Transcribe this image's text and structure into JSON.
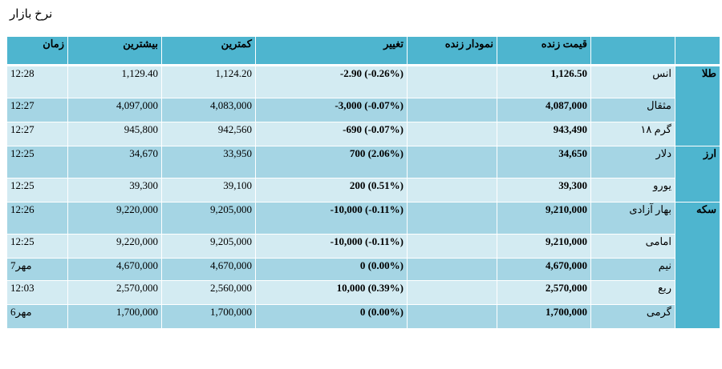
{
  "page": {
    "title": "نرخ بازار"
  },
  "table": {
    "headers": {
      "time": "زمان",
      "high": "بیشترین",
      "low": "کمترین",
      "change": "تغییر",
      "live_chart": "نمودار زنده",
      "live_price": "قیمت زنده",
      "item": "",
      "group": ""
    },
    "groups": [
      {
        "name": "طلا",
        "rows": [
          {
            "item": "انس",
            "live_price": "1,126.50",
            "live_chart": "",
            "change": "-2.90 (-0.26%)",
            "low": "1,124.20",
            "high": "1,129.40",
            "time": "12:28"
          },
          {
            "item": "مثقال",
            "live_price": "4,087,000",
            "live_chart": "",
            "change": "-3,000 (-0.07%)",
            "low": "4,083,000",
            "high": "4,097,000",
            "time": "12:27"
          },
          {
            "item": "گرم ۱۸",
            "live_price": "943,490",
            "live_chart": "",
            "change": "-690 (-0.07%)",
            "low": "942,560",
            "high": "945,800",
            "time": "12:27"
          }
        ]
      },
      {
        "name": "ارز",
        "rows": [
          {
            "item": "دلار",
            "live_price": "34,650",
            "live_chart": "",
            "change": "700 (2.06%)",
            "low": "33,950",
            "high": "34,670",
            "time": "12:25"
          },
          {
            "item": "یورو",
            "live_price": "39,300",
            "live_chart": "",
            "change": "200 (0.51%)",
            "low": "39,100",
            "high": "39,300",
            "time": "12:25"
          }
        ]
      },
      {
        "name": "سکه",
        "rows": [
          {
            "item": "بهار آزادی",
            "live_price": "9,210,000",
            "live_chart": "",
            "change": "-10,000 (-0.11%)",
            "low": "9,205,000",
            "high": "9,220,000",
            "time": "12:26"
          },
          {
            "item": "امامی",
            "live_price": "9,210,000",
            "live_chart": "",
            "change": "-10,000 (-0.11%)",
            "low": "9,205,000",
            "high": "9,220,000",
            "time": "12:25"
          },
          {
            "item": "نیم",
            "live_price": "4,670,000",
            "live_chart": "",
            "change": "0 (0.00%)",
            "low": "4,670,000",
            "high": "4,670,000",
            "time": "7مهر"
          },
          {
            "item": "ربع",
            "live_price": "2,570,000",
            "live_chart": "",
            "change": "10,000 (0.39%)",
            "low": "2,560,000",
            "high": "2,570,000",
            "time": "12:03"
          },
          {
            "item": "گرمی",
            "live_price": "1,700,000",
            "live_chart": "",
            "change": "0 (0.00%)",
            "low": "1,700,000",
            "high": "1,700,000",
            "time": "6مهر"
          }
        ]
      }
    ]
  },
  "colors": {
    "header_bg": "#4eb5cf",
    "band_light": "#d3ebf2",
    "band_dark": "#a5d5e4"
  }
}
